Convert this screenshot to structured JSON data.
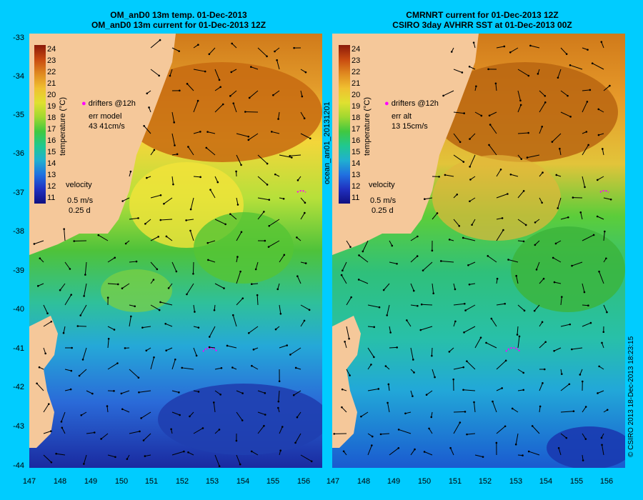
{
  "left_panel": {
    "title_line1": "OM_anD0 13m temp. 01-Dec-2013",
    "title_line2": "OM_anD0 13m current for 01-Dec-2013 12Z",
    "drifters": "drifters @12h",
    "err_label": "err model",
    "err_value": "43 41cm/s",
    "velocity_label": "velocity",
    "velocity_scale": "0.5 m/s",
    "velocity_time": "0.25 d"
  },
  "right_panel": {
    "title_line1": "CMRNRT current for 01-Dec-2013 12Z",
    "title_line2": "CSIRO 3day AVHRR SST at 01-Dec-2013 00Z",
    "drifters": "drifters @12h",
    "err_label": "err alt",
    "err_value": "13 15cm/s",
    "velocity_label": "velocity",
    "velocity_scale": "0.5 m/s",
    "velocity_time": "0.25 d",
    "side_label": "ocean_an01_20131201"
  },
  "colorbar": {
    "title": "temperature (°C)",
    "ticks": [
      "24",
      "23",
      "22",
      "21",
      "20",
      "19",
      "18",
      "17",
      "16",
      "15",
      "14",
      "13",
      "12",
      "11"
    ]
  },
  "y_axis": [
    "-33",
    "-34",
    "-35",
    "-36",
    "-37",
    "-38",
    "-39",
    "-40",
    "-41",
    "-42",
    "-43",
    "-44"
  ],
  "x_axis": [
    "147",
    "148",
    "149",
    "150",
    "151",
    "152",
    "153",
    "154",
    "155",
    "156"
  ],
  "credit": "© CSIRO 2013   18-Dec-2013 18:23:15",
  "colors": {
    "background": "#00ccff",
    "land": "#f5c89a",
    "drifter": "#ff00ff"
  }
}
